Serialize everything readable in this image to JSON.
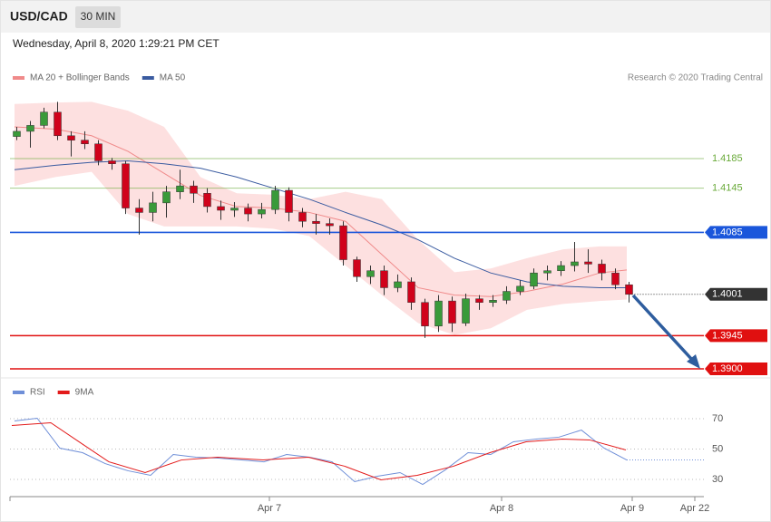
{
  "chart_data": [
    {
      "type": "candlestick",
      "title": "USD/CAD",
      "timeframe": "30 MIN",
      "subtitle": "Wednesday, April 8, 2020 1:29:21 PM CET",
      "credit": "Research © 2020 Trading Central",
      "xlim": [
        0,
        153
      ],
      "ylim": [
        1.389,
        1.428
      ],
      "up_color": "#3a9a3a",
      "down_color": "#d0021b",
      "x": [
        1.5,
        4.5,
        7.5,
        10.5,
        13.5,
        16.5,
        19.5,
        22.5,
        25.5,
        28.5,
        31.5,
        34.5,
        37.5,
        40.5,
        43.5,
        46.5,
        49.5,
        52.5,
        55.5,
        58.5,
        61.5,
        64.5,
        67.5,
        70.5,
        73.5,
        76.5,
        79.5,
        82.5,
        85.5,
        88.5,
        91.5,
        94.5,
        97.5,
        100.5,
        103.5,
        106.5,
        109.5,
        112.5,
        115.5,
        118.5,
        121.5,
        124.5,
        127.5,
        130.5,
        133.5,
        136.5
      ],
      "open": [
        1.4215,
        1.4222,
        1.423,
        1.4248,
        1.4216,
        1.421,
        1.4205,
        1.4182,
        1.4178,
        1.4118,
        1.4112,
        1.4125,
        1.414,
        1.4148,
        1.4138,
        1.412,
        1.4115,
        1.4118,
        1.411,
        1.4116,
        1.4142,
        1.4112,
        1.41,
        1.4097,
        1.4094,
        1.4048,
        1.4025,
        1.4033,
        1.401,
        1.4018,
        1.399,
        1.3958,
        1.3992,
        1.3962,
        1.3995,
        1.399,
        1.3993,
        1.4005,
        1.4012,
        1.403,
        1.4033,
        1.404,
        1.4045,
        1.4042,
        1.403,
        1.4014
      ],
      "high": [
        1.4228,
        1.4236,
        1.4254,
        1.4262,
        1.4222,
        1.4222,
        1.421,
        1.4186,
        1.4182,
        1.413,
        1.414,
        1.4148,
        1.417,
        1.4155,
        1.4145,
        1.4128,
        1.4126,
        1.4124,
        1.4125,
        1.4148,
        1.4146,
        1.4118,
        1.411,
        1.4104,
        1.41,
        1.4052,
        1.404,
        1.404,
        1.4028,
        1.4024,
        1.3995,
        1.4,
        1.3998,
        1.4002,
        1.4,
        1.4,
        1.4012,
        1.402,
        1.4036,
        1.404,
        1.4046,
        1.4072,
        1.4062,
        1.4048,
        1.4036,
        1.4018
      ],
      "low": [
        1.421,
        1.42,
        1.4226,
        1.421,
        1.4188,
        1.4198,
        1.4176,
        1.417,
        1.411,
        1.4082,
        1.41,
        1.4105,
        1.413,
        1.4125,
        1.4112,
        1.4102,
        1.4106,
        1.41,
        1.4104,
        1.411,
        1.41,
        1.4092,
        1.4082,
        1.4082,
        1.404,
        1.4018,
        1.4015,
        1.4,
        1.4004,
        1.398,
        1.3942,
        1.395,
        1.395,
        1.3958,
        1.398,
        1.3984,
        1.3988,
        1.4,
        1.4008,
        1.402,
        1.4026,
        1.4032,
        1.403,
        1.402,
        1.4008,
        1.399
      ],
      "close": [
        1.4222,
        1.423,
        1.4248,
        1.4216,
        1.421,
        1.4205,
        1.4182,
        1.4178,
        1.4118,
        1.4112,
        1.4125,
        1.414,
        1.4148,
        1.4138,
        1.412,
        1.4115,
        1.4118,
        1.411,
        1.4116,
        1.4142,
        1.4112,
        1.41,
        1.4097,
        1.4094,
        1.4048,
        1.4025,
        1.4033,
        1.401,
        1.4018,
        1.399,
        1.3958,
        1.3992,
        1.3962,
        1.3995,
        1.399,
        1.3993,
        1.4005,
        1.4012,
        1.403,
        1.4033,
        1.404,
        1.4045,
        1.4042,
        1.403,
        1.4014,
        1.4001
      ],
      "band": {
        "name": "MA 20 + Bollinger Bands",
        "color": "#f08a8a",
        "fill": "#fde0e0",
        "x": [
          1,
          10,
          18,
          26,
          34,
          42,
          50,
          58,
          66,
          74,
          82,
          90,
          98,
          106,
          114,
          122,
          130,
          136
        ],
        "upper": [
          1.4259,
          1.4261,
          1.4262,
          1.425,
          1.4228,
          1.416,
          1.4138,
          1.4136,
          1.413,
          1.414,
          1.413,
          1.4075,
          1.4031,
          1.4036,
          1.405,
          1.4062,
          1.4066,
          1.4066
        ],
        "middle": [
          1.4228,
          1.4225,
          1.4216,
          1.4195,
          1.4165,
          1.4135,
          1.412,
          1.4118,
          1.4112,
          1.41,
          1.4055,
          1.401,
          1.4,
          1.3998,
          1.4005,
          1.4015,
          1.403,
          1.4034
        ],
        "lower": [
          1.4148,
          1.416,
          1.4167,
          1.411,
          1.4093,
          1.4093,
          1.4093,
          1.409,
          1.408,
          1.404,
          1.4,
          1.3962,
          1.3946,
          1.3955,
          1.398,
          1.3988,
          1.3992,
          1.3994
        ]
      },
      "series": [
        {
          "name": "MA 50",
          "color": "#3a5ba0",
          "x": [
            1,
            10,
            18,
            26,
            34,
            42,
            50,
            58,
            66,
            74,
            82,
            90,
            98,
            106,
            114,
            122,
            130,
            136
          ],
          "values": [
            1.417,
            1.4176,
            1.418,
            1.4182,
            1.4178,
            1.4172,
            1.416,
            1.4145,
            1.413,
            1.4112,
            1.4095,
            1.4075,
            1.405,
            1.403,
            1.4018,
            1.4012,
            1.401,
            1.401
          ]
        }
      ],
      "levels": [
        {
          "value": 1.4185,
          "label": "1.4185",
          "color": "#6aaa3a",
          "boxed": false,
          "dotted": false
        },
        {
          "value": 1.4145,
          "label": "1.4145",
          "color": "#6aaa3a",
          "boxed": false,
          "dotted": false
        },
        {
          "value": 1.4085,
          "label": "1.4085",
          "color": "#1a56db",
          "boxed": true,
          "dotted": false
        },
        {
          "value": 1.4001,
          "label": "1.4001",
          "color": "#333333",
          "boxed": true,
          "dotted": true
        },
        {
          "value": 1.3945,
          "label": "1.3945",
          "color": "#e01010",
          "boxed": true,
          "dotted": false
        },
        {
          "value": 1.39,
          "label": "1.3900",
          "color": "#e01010",
          "boxed": true,
          "dotted": false
        }
      ]
    },
    {
      "type": "line",
      "xlim": [
        0,
        153
      ],
      "ylim": [
        20,
        84
      ],
      "yticks": [
        70,
        50,
        30
      ],
      "grid": true,
      "xticks": [
        {
          "value": 57.2,
          "label": "Apr 7"
        },
        {
          "value": 108.4,
          "label": "Apr 8"
        },
        {
          "value": 137.2,
          "label": "Apr 9"
        },
        {
          "value": 151,
          "label": "Apr 22"
        }
      ],
      "series": [
        {
          "name": "RSI",
          "color": "#6f8fd8",
          "x": [
            1,
            6,
            11,
            16,
            21,
            26,
            31,
            36,
            41,
            46,
            51,
            56,
            61,
            66,
            71,
            76,
            81,
            86,
            91,
            96,
            101,
            106,
            111,
            116,
            121,
            126,
            131,
            136
          ],
          "values": [
            68.5,
            70.3,
            50.6,
            47.6,
            40.4,
            35.7,
            32.7,
            46.4,
            44.6,
            44.0,
            42.8,
            41.6,
            46.4,
            44.6,
            41.6,
            28.5,
            32.1,
            34.5,
            26.7,
            36.3,
            47.6,
            46.4,
            54.8,
            56.6,
            57.8,
            62.5,
            50.6,
            42.8
          ]
        },
        {
          "name": "9MA",
          "color": "#e31b1b",
          "x": [
            0.4,
            9,
            15.8,
            21.8,
            29.8,
            37.8,
            45.8,
            55.8,
            65.8,
            73.8,
            81.8,
            89.8,
            97.8,
            105.8,
            113.8,
            121.8,
            127.8,
            135.8
          ],
          "values": [
            65.5,
            67.3,
            53.6,
            41.6,
            34.5,
            42.8,
            44.6,
            42.8,
            44.6,
            38.7,
            29.7,
            32.7,
            38.7,
            47.6,
            54.8,
            56.6,
            56.0,
            49.4
          ]
        }
      ]
    }
  ]
}
